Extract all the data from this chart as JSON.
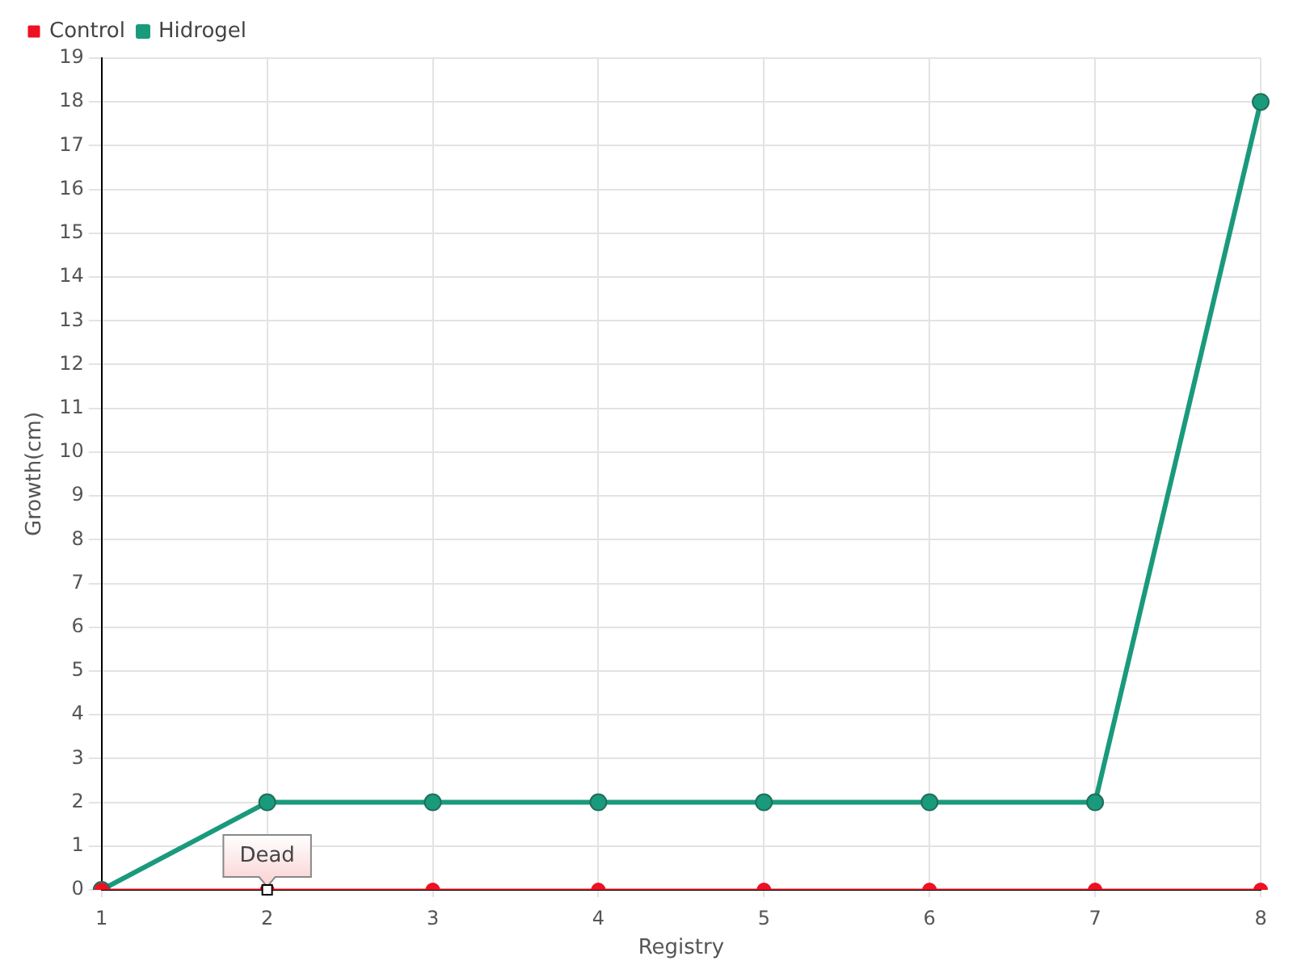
{
  "chart_data": {
    "type": "line",
    "xlabel": "Registry",
    "ylabel": "Growth(cm)",
    "categories": [
      "1",
      "2",
      "3",
      "4",
      "5",
      "6",
      "7",
      "8"
    ],
    "series": [
      {
        "name": "Hidrogel",
        "color": "#1a9a7c",
        "values": [
          0,
          2,
          2,
          2,
          2,
          2,
          2,
          18
        ]
      },
      {
        "name": "Control",
        "color": "#ee1122",
        "values": [
          0,
          0,
          0,
          0,
          0,
          0,
          0,
          0
        ]
      }
    ],
    "ylim": [
      0,
      19
    ],
    "yticks": [
      0,
      1,
      2,
      3,
      4,
      5,
      6,
      7,
      8,
      9,
      10,
      11,
      12,
      13,
      14,
      15,
      16,
      17,
      18,
      19
    ],
    "grid": true,
    "legend": "top left",
    "marker": "circle",
    "line_style": "solid",
    "annotations": [
      {
        "text": "Dead",
        "x": "2",
        "y": 0
      }
    ]
  }
}
